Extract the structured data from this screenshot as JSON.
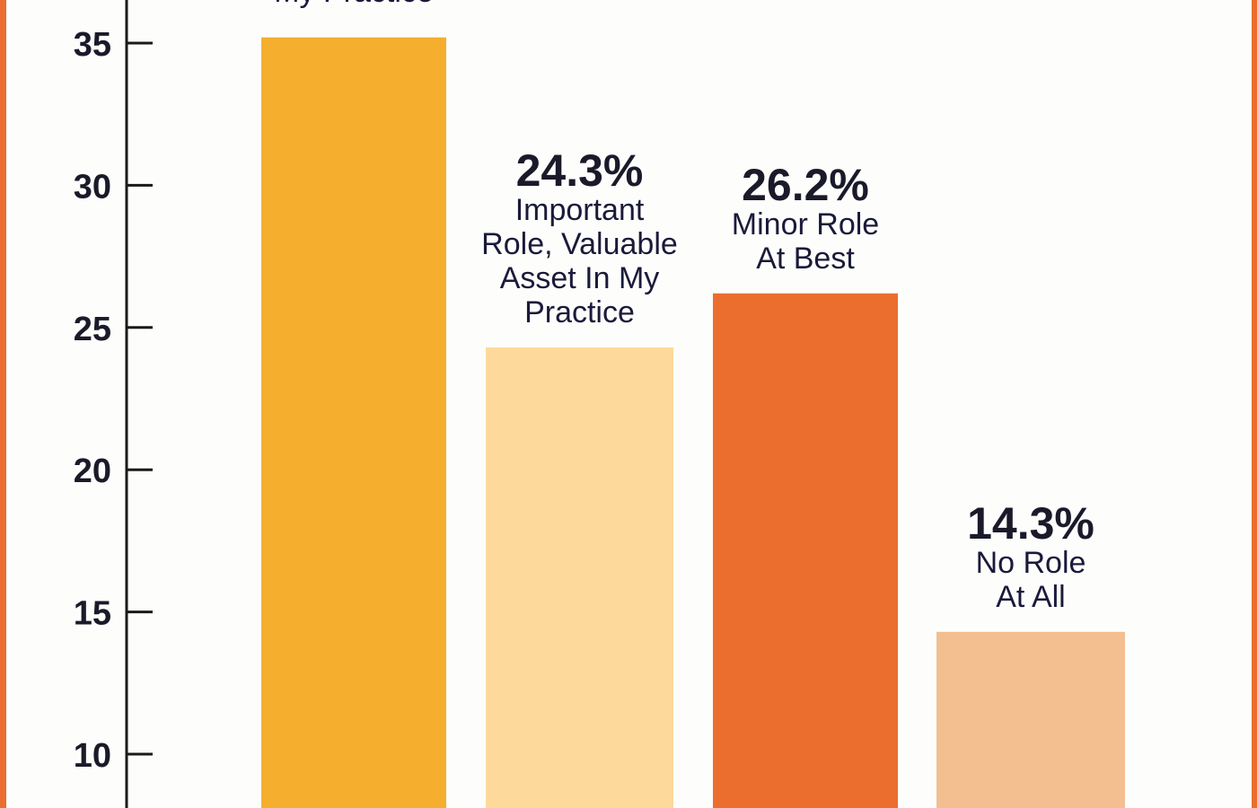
{
  "chart_data": {
    "type": "bar",
    "title": "",
    "xlabel": "",
    "ylabel": "",
    "ylim": [
      8.1,
      36.5
    ],
    "yticks": [
      10,
      15,
      20,
      25,
      30,
      35
    ],
    "grid": false,
    "bars": [
      {
        "value": 35.2,
        "value_label": "",
        "caption": [
          "My Practice"
        ],
        "color": "#f5ae2e"
      },
      {
        "value": 24.3,
        "value_label": "24.3%",
        "caption": [
          "Important",
          "Role, Valuable",
          "Asset In My",
          "Practice"
        ],
        "color": "#fdd99b"
      },
      {
        "value": 26.2,
        "value_label": "26.2%",
        "caption": [
          "Minor Role",
          "At Best"
        ],
        "color": "#eb6e2f"
      },
      {
        "value": 14.3,
        "value_label": "14.3%",
        "caption": [
          "No Role",
          "At All"
        ],
        "color": "#f3bf90"
      }
    ],
    "frame_color": "#eb6e2f"
  }
}
